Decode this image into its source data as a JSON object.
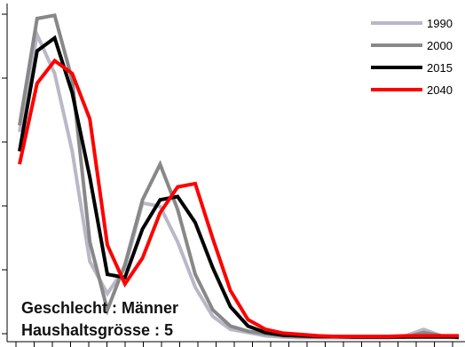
{
  "chart_data": {
    "type": "line",
    "title": "",
    "xlabel": "",
    "ylabel": "",
    "x": [
      0,
      1,
      2,
      3,
      4,
      5,
      6,
      7,
      8,
      9,
      10,
      11,
      12,
      13,
      14,
      15,
      16,
      17,
      18,
      19,
      20,
      21,
      22,
      23,
      24,
      25
    ],
    "xlim": [
      0,
      25
    ],
    "ylim": [
      0,
      5.1
    ],
    "grid": false,
    "legend_position": "top-right",
    "series": [
      {
        "name": "1990",
        "color": "#b8b8c8",
        "values": [
          3.2,
          4.7,
          4.1,
          2.9,
          1.2,
          0.7,
          1.1,
          2.1,
          2.05,
          1.5,
          0.8,
          0.35,
          0.15,
          0.1,
          0.05,
          0.03,
          0.02,
          0.02,
          0.02,
          0.02,
          0.02,
          0.02,
          0.05,
          0.15,
          0.05,
          0.02
        ]
      },
      {
        "name": "2000",
        "color": "#888888",
        "values": [
          3.3,
          4.95,
          5.0,
          4.0,
          1.5,
          0.45,
          1.15,
          2.15,
          2.7,
          2.0,
          1.0,
          0.45,
          0.2,
          0.12,
          0.08,
          0.05,
          0.04,
          0.03,
          0.03,
          0.03,
          0.03,
          0.03,
          0.03,
          0.1,
          0.05,
          0.02
        ]
      },
      {
        "name": "2015",
        "color": "#000000",
        "values": [
          2.9,
          4.45,
          4.65,
          3.8,
          2.5,
          1.0,
          0.95,
          1.7,
          2.15,
          2.2,
          1.8,
          1.1,
          0.5,
          0.2,
          0.1,
          0.06,
          0.05,
          0.04,
          0.04,
          0.03,
          0.03,
          0.03,
          0.03,
          0.03,
          0.03,
          0.03
        ]
      },
      {
        "name": "2040",
        "color": "#ff0000",
        "values": [
          2.7,
          3.95,
          4.3,
          4.1,
          3.4,
          1.45,
          0.85,
          1.25,
          1.95,
          2.35,
          2.4,
          1.55,
          0.75,
          0.3,
          0.15,
          0.09,
          0.07,
          0.05,
          0.04,
          0.04,
          0.04,
          0.04,
          0.05,
          0.05,
          0.05,
          0.05
        ]
      }
    ]
  },
  "annotation": {
    "line1": "Geschlecht : Männer",
    "line2": "Haushaltsgrösse : 5"
  }
}
